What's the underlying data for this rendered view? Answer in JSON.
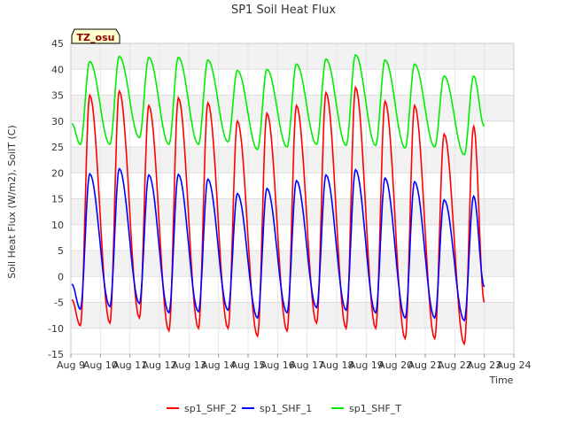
{
  "chart_data": {
    "type": "line",
    "title": "SP1 Soil Heat Flux",
    "xlabel": "Time",
    "ylabel": "Soil Heat Flux (W/m2), SoilT (C)",
    "ylim": [
      -15,
      45
    ],
    "yticks": [
      -15,
      -10,
      -5,
      0,
      5,
      10,
      15,
      20,
      25,
      30,
      35,
      40,
      45
    ],
    "xlim": [
      "2024-08-09",
      "2024-08-24"
    ],
    "xtick_labels": [
      "Aug 9",
      "Aug 10",
      "Aug 11",
      "Aug 12",
      "Aug 13",
      "Aug 14",
      "Aug 15",
      "Aug 16",
      "Aug 17",
      "Aug 18",
      "Aug 19",
      "Aug 20",
      "Aug 21",
      "Aug 22",
      "Aug 23",
      "Aug 24"
    ],
    "grid": true,
    "legend_position": "bottom-center",
    "annotation": "TZ_osu",
    "series": [
      {
        "name": "sp1_SHF_2",
        "color": "#ff0000",
        "daily_min": [
          -9.5,
          -9,
          -8,
          -10.5,
          -10,
          -10,
          -11.5,
          -10.5,
          -9,
          -10,
          -10,
          -12,
          -12,
          -13
        ],
        "daily_max": [
          35,
          35.8,
          33,
          34.5,
          33.5,
          30,
          31.5,
          33,
          35.5,
          36.5,
          33.8,
          33,
          27.5,
          29
        ],
        "start_value": -4.5,
        "end_value": -5
      },
      {
        "name": "sp1_SHF_1",
        "color": "#0000ff",
        "daily_min": [
          -6.3,
          -5.8,
          -5.2,
          -7,
          -6.8,
          -6.5,
          -8,
          -7,
          -6,
          -6.5,
          -7,
          -8,
          -8,
          -8.5
        ],
        "daily_max": [
          19.8,
          20.8,
          19.6,
          19.7,
          18.8,
          16,
          17,
          18.5,
          19.6,
          20.6,
          19,
          18.3,
          14.8,
          15.5
        ],
        "start_value": -1.5,
        "end_value": -2
      },
      {
        "name": "sp1_SHF_T",
        "color": "#00ee00",
        "daily_min": [
          25.5,
          25.5,
          26.8,
          25.5,
          25.5,
          26,
          24.5,
          25,
          25.5,
          25.3,
          25.3,
          24.8,
          25,
          23.5
        ],
        "daily_max": [
          41.5,
          42.5,
          42.3,
          42.3,
          41.8,
          39.8,
          40,
          41,
          42,
          42.8,
          41.8,
          41,
          38.7,
          38.7
        ],
        "start_value": 29.5,
        "end_value": 29
      }
    ]
  }
}
